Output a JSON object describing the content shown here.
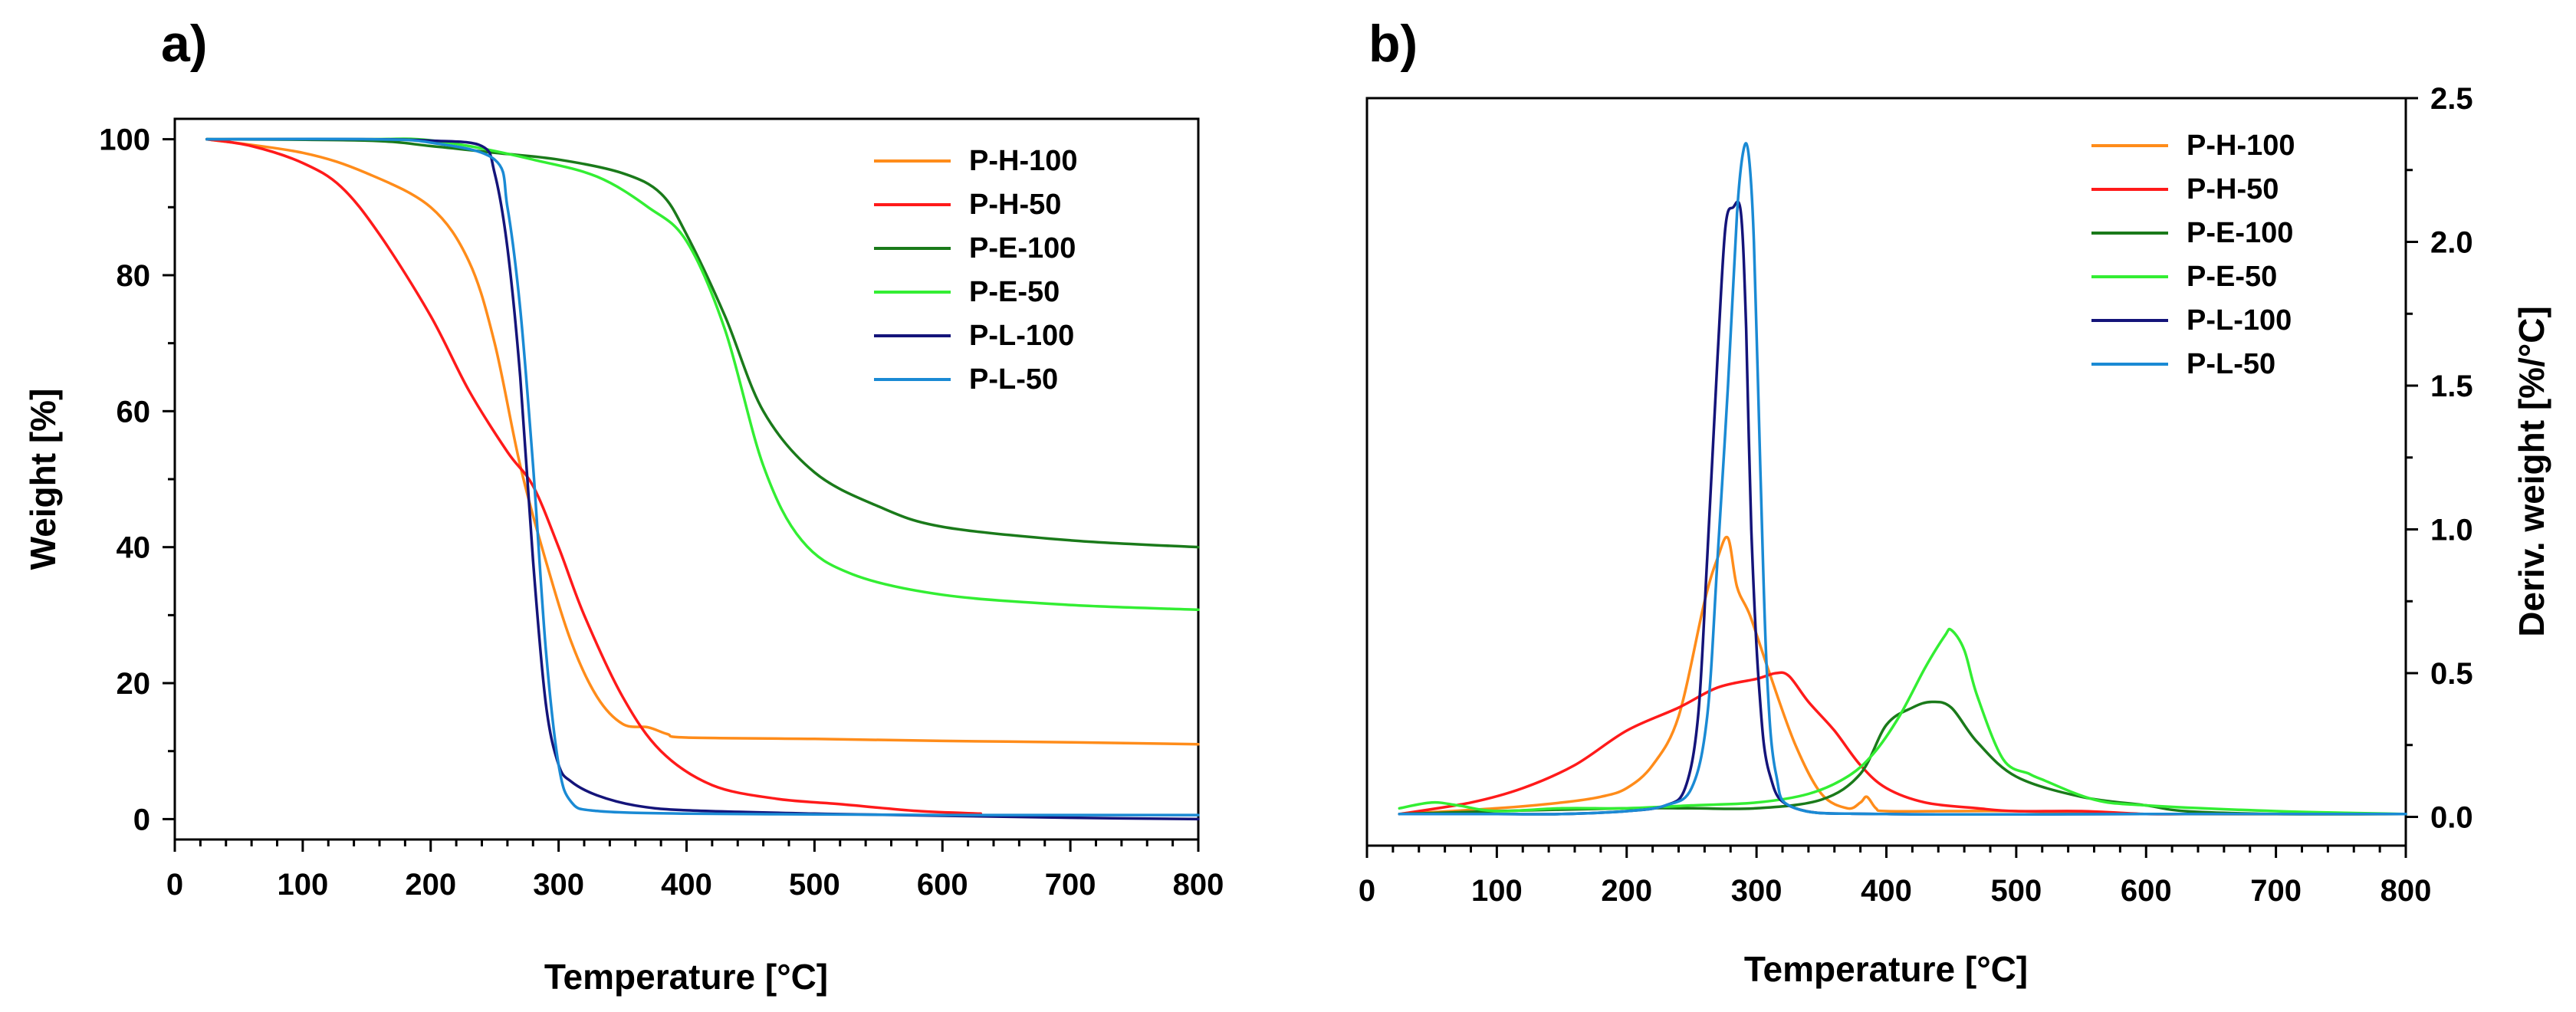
{
  "chart_data": [
    {
      "panel": "a)",
      "type": "line",
      "title": "",
      "xlabel": "Temperature",
      "xlabel_unit": "[°C]",
      "ylabel": "Weight [%]",
      "xlim": [
        0,
        800
      ],
      "ylim": [
        -3,
        103
      ],
      "xticks": [
        0,
        100,
        200,
        300,
        400,
        500,
        600,
        700,
        800
      ],
      "yticks": [
        0,
        20,
        40,
        60,
        80,
        100
      ],
      "legend_position": "top-right",
      "series": [
        {
          "name": "P-H-100",
          "color": "#ff8c1a",
          "x": [
            25,
            100,
            150,
            200,
            230,
            250,
            270,
            290,
            310,
            330,
            350,
            370,
            385,
            400,
            500,
            600,
            700,
            800
          ],
          "y": [
            100,
            98,
            95,
            90,
            82,
            70,
            52,
            38,
            26,
            18,
            14,
            13.5,
            12.5,
            12,
            11.8,
            11.5,
            11.3,
            11
          ]
        },
        {
          "name": "P-H-50",
          "color": "#ff1a1a",
          "x": [
            25,
            60,
            100,
            130,
            160,
            200,
            230,
            260,
            280,
            300,
            320,
            350,
            380,
            420,
            470,
            520,
            580,
            630
          ],
          "y": [
            100,
            99,
            96.5,
            93,
            86,
            74,
            63,
            54,
            49,
            40,
            30,
            18,
            10,
            5,
            3,
            2.2,
            1.2,
            0.8
          ]
        },
        {
          "name": "P-E-100",
          "color": "#1a7a1a",
          "x": [
            25,
            150,
            200,
            250,
            300,
            350,
            380,
            400,
            430,
            460,
            500,
            550,
            600,
            700,
            800
          ],
          "y": [
            100,
            99.8,
            99,
            98,
            97,
            95,
            92,
            86,
            74,
            60,
            51,
            46,
            43,
            41,
            40
          ]
        },
        {
          "name": "P-E-50",
          "color": "#33ee33",
          "x": [
            25,
            150,
            190,
            230,
            280,
            330,
            370,
            400,
            430,
            460,
            490,
            530,
            600,
            700,
            800
          ],
          "y": [
            100,
            100,
            100,
            99,
            97,
            94.5,
            90,
            85,
            72,
            52,
            41,
            36,
            33,
            31.5,
            30.8
          ]
        },
        {
          "name": "P-L-100",
          "color": "#14147a",
          "x": [
            25,
            150,
            200,
            240,
            250,
            260,
            270,
            280,
            290,
            300,
            310,
            330,
            360,
            400,
            500,
            600,
            700,
            800
          ],
          "y": [
            100,
            100,
            99.8,
            99,
            95,
            84,
            65,
            38,
            17,
            8,
            5.5,
            3.5,
            2,
            1.3,
            0.8,
            0.5,
            0.2,
            0
          ]
        },
        {
          "name": "P-L-50",
          "color": "#1a8ad4",
          "x": [
            25,
            150,
            200,
            250,
            260,
            270,
            280,
            290,
            300,
            310,
            330,
            400,
            500,
            600,
            700,
            800
          ],
          "y": [
            100,
            100,
            99.5,
            97,
            90,
            75,
            52,
            25,
            8,
            2.5,
            1.2,
            0.8,
            0.7,
            0.6,
            0.6,
            0.6
          ]
        }
      ]
    },
    {
      "panel": "b)",
      "type": "line",
      "title": "",
      "xlabel": "Temperature",
      "xlabel_unit": "[°C]",
      "ylabel": "Deriv. weight [%/°C]",
      "ylabel_position": "right",
      "xlim": [
        0,
        800
      ],
      "ylim": [
        -0.1,
        2.5
      ],
      "xticks": [
        0,
        100,
        200,
        300,
        400,
        500,
        600,
        700,
        800
      ],
      "yticks": [
        0.0,
        0.5,
        1.0,
        1.5,
        2.0,
        2.5
      ],
      "legend_position": "top-right",
      "series": [
        {
          "name": "P-H-100",
          "color": "#ff8c1a",
          "x": [
            25,
            100,
            150,
            180,
            200,
            220,
            240,
            260,
            270,
            278,
            285,
            295,
            310,
            330,
            350,
            370,
            380,
            385,
            392,
            400,
            450,
            500,
            600,
            800
          ],
          "y": [
            0.01,
            0.03,
            0.05,
            0.07,
            0.1,
            0.18,
            0.35,
            0.75,
            0.9,
            0.97,
            0.8,
            0.7,
            0.5,
            0.25,
            0.08,
            0.03,
            0.05,
            0.07,
            0.03,
            0.02,
            0.02,
            0.02,
            0.01,
            0.01
          ]
        },
        {
          "name": "P-H-50",
          "color": "#ff1a1a",
          "x": [
            25,
            80,
            120,
            160,
            200,
            240,
            270,
            300,
            315,
            325,
            340,
            360,
            380,
            400,
            430,
            470,
            500,
            550,
            600,
            630
          ],
          "y": [
            0.01,
            0.05,
            0.1,
            0.18,
            0.3,
            0.38,
            0.45,
            0.48,
            0.5,
            0.49,
            0.4,
            0.3,
            0.18,
            0.1,
            0.05,
            0.03,
            0.02,
            0.02,
            0.01,
            0.01
          ]
        },
        {
          "name": "P-E-100",
          "color": "#1a7a1a",
          "x": [
            25,
            100,
            200,
            250,
            300,
            350,
            380,
            400,
            420,
            435,
            450,
            470,
            500,
            550,
            600,
            630,
            700,
            800
          ],
          "y": [
            0.01,
            0.02,
            0.03,
            0.03,
            0.03,
            0.06,
            0.15,
            0.32,
            0.38,
            0.4,
            0.38,
            0.26,
            0.14,
            0.07,
            0.04,
            0.02,
            0.01,
            0.01
          ]
        },
        {
          "name": "P-E-50",
          "color": "#33ee33",
          "x": [
            25,
            50,
            70,
            100,
            150,
            200,
            250,
            300,
            340,
            370,
            390,
            410,
            430,
            445,
            450,
            460,
            470,
            490,
            510,
            520,
            560,
            600,
            700,
            800
          ],
          "y": [
            0.03,
            0.05,
            0.04,
            0.02,
            0.03,
            0.03,
            0.04,
            0.05,
            0.08,
            0.14,
            0.22,
            0.35,
            0.52,
            0.63,
            0.65,
            0.58,
            0.42,
            0.2,
            0.15,
            0.13,
            0.06,
            0.04,
            0.02,
            0.01
          ]
        },
        {
          "name": "P-L-100",
          "color": "#14147a",
          "x": [
            25,
            100,
            150,
            200,
            230,
            245,
            255,
            262,
            270,
            276,
            282,
            288,
            292,
            296,
            302,
            310,
            330,
            400,
            600,
            800
          ],
          "y": [
            0.01,
            0.01,
            0.01,
            0.02,
            0.04,
            0.1,
            0.35,
            0.9,
            1.6,
            2.05,
            2.12,
            2.1,
            1.7,
            1.0,
            0.45,
            0.15,
            0.03,
            0.01,
            0.01,
            0.01
          ]
        },
        {
          "name": "P-L-50",
          "color": "#1a8ad4",
          "x": [
            25,
            100,
            150,
            200,
            230,
            250,
            262,
            270,
            278,
            285,
            290,
            294,
            298,
            303,
            308,
            315,
            330,
            400,
            600,
            800
          ],
          "y": [
            0.01,
            0.01,
            0.01,
            0.02,
            0.04,
            0.1,
            0.35,
            0.9,
            1.5,
            2.1,
            2.32,
            2.3,
            2.0,
            1.2,
            0.5,
            0.15,
            0.03,
            0.01,
            0.01,
            0.01
          ]
        }
      ]
    }
  ]
}
